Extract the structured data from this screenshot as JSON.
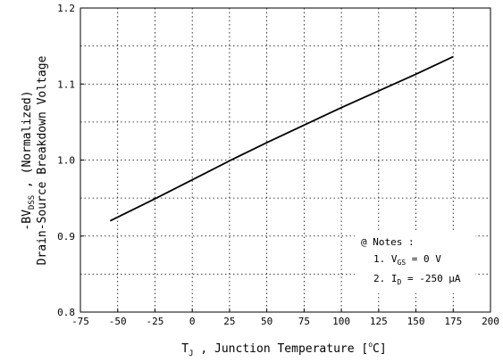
{
  "chart_data": {
    "type": "line",
    "x_axis": {
      "label_main": "T",
      "label_sub": "J",
      "label_rest": " , Junction Temperature  [",
      "label_deg": "o",
      "label_unit": "C]",
      "range": [
        -75,
        200
      ],
      "ticks": [
        -75,
        -50,
        -25,
        0,
        25,
        50,
        75,
        100,
        125,
        150,
        175,
        200
      ]
    },
    "y_axis": {
      "label_line1_a": "-BV",
      "label_line1_sub": "DSS",
      "label_line1_b": " ,  (Normalized)",
      "label_line2": "Drain-Source Breakdown Voltage",
      "range": [
        0.8,
        1.2
      ],
      "ticks": [
        0.8,
        0.9,
        1.0,
        1.1,
        1.2
      ],
      "tick_labels": [
        "0.8",
        "0.9",
        "1.0",
        "1.1",
        "1.2"
      ]
    },
    "grid": true,
    "series": [
      {
        "x": [
          -55,
          -25,
          0,
          25,
          50,
          75,
          100,
          125,
          150,
          175
        ],
        "y": [
          0.92,
          0.949,
          0.974,
          0.999,
          1.023,
          1.046,
          1.069,
          1.091,
          1.113,
          1.136
        ]
      }
    ],
    "notes": {
      "title": "@ Notes :",
      "line1_pre": "1. V",
      "line1_sub": "GS",
      "line1_post": " = 0 V",
      "line2_pre": "2. I",
      "line2_sub": "D",
      "line2_post": " = -250 μA"
    }
  }
}
